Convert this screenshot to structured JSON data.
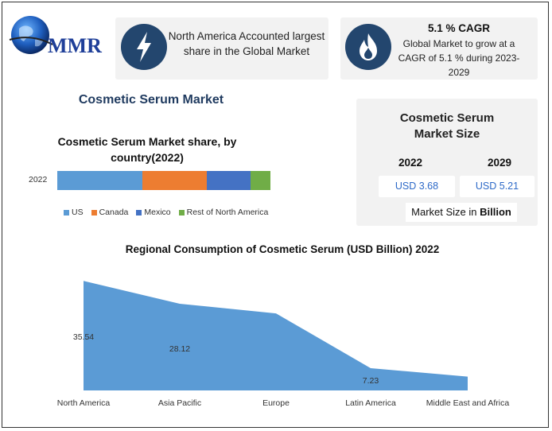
{
  "header": {
    "logo_text": "MMR",
    "card1": {
      "text": "North America Accounted largest share in the Global Market",
      "icon": "lightning-icon"
    },
    "card2": {
      "title": "5.1 % CAGR",
      "text": "Global Market to grow at a CAGR of 5.1 % during 2023-2029",
      "icon": "flame-icon"
    }
  },
  "main_title": "Cosmetic Serum Market",
  "size_card": {
    "title": "Cosmetic Serum Market Size",
    "year1": "2022",
    "year2": "2029",
    "value1": "USD 3.68",
    "value2": "USD 5.21",
    "footer_prefix": "Market Size in ",
    "footer_unit": "Billion"
  },
  "colors": {
    "us": "#5b9bd5",
    "canada": "#ed7d31",
    "mexico": "#4472c4",
    "rest": "#70ad47",
    "area": "#5b9bd5",
    "icon_bg": "#23466e"
  },
  "chart_data": [
    {
      "type": "bar",
      "orientation": "horizontal-stacked",
      "title": "Cosmetic Serum Market share, by country(2022)",
      "categories": [
        "2022"
      ],
      "series": [
        {
          "name": "US",
          "values": [
            40
          ]
        },
        {
          "name": "Canada",
          "values": [
            30
          ]
        },
        {
          "name": "Mexico",
          "values": [
            20.5
          ]
        },
        {
          "name": "Rest of North America",
          "values": [
            9.5
          ]
        }
      ],
      "legend": "bottom"
    },
    {
      "type": "area",
      "title": "Regional Consumption of Cosmetic Serum (USD Billion) 2022",
      "categories": [
        "North America",
        "Asia Pacific",
        "Europe",
        "Latin America",
        "Middle East and Africa"
      ],
      "values": [
        35.54,
        28.12,
        25.0,
        7.23,
        4.5
      ],
      "data_labels": [
        "35.54",
        "28.12",
        "",
        "7.23",
        ""
      ],
      "ylim": [
        0,
        40
      ]
    }
  ]
}
